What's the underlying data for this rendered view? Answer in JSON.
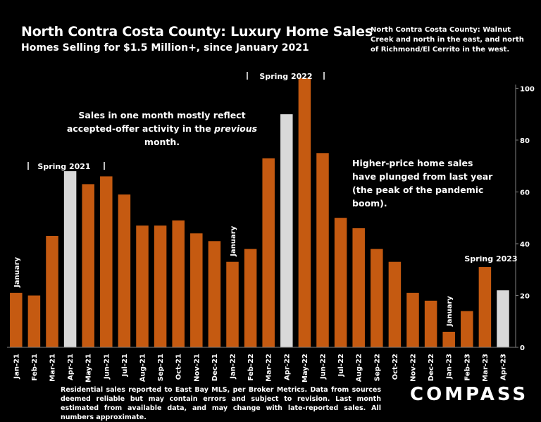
{
  "header": {
    "title": "North Contra Costa County: Luxury Home Sales",
    "subtitle": "Homes Selling for $1.5 Million+, since January 2021"
  },
  "region_note": "North Contra Costa County: Walnut Creek and north in the east, and north of Richmond/El Cerrito in the west.",
  "annotations": {
    "accepted_offer_pre": "Sales in one month mostly reflect accepted-offer activity in the ",
    "accepted_offer_em": "previous",
    "accepted_offer_post": " month.",
    "plunged": "Higher-price home sales have plunged from last year (the peak of the pandemic boom).",
    "spring_2021": "Spring 2021",
    "spring_2022": "Spring 2022",
    "spring_2023": "Spring 2023",
    "january": "January"
  },
  "footnote": "Residential sales reported to East Bay MLS, per Broker Metrics. Data from sources deemed reliable but may contain errors and subject to revision.  Last month estimated from available data, and may change with late-reported sales. All numbers approximate.",
  "logo": "COMPASS",
  "colors": {
    "bar": "#C55A11",
    "highlight": "#D9D9D9",
    "background": "#000000",
    "axis": "#808080"
  },
  "chart_data": {
    "type": "bar",
    "categories": [
      "Jan-21",
      "Feb-21",
      "Mar-21",
      "Apr-21",
      "May-21",
      "Jun-21",
      "Jul-21",
      "Aug-21",
      "Sep-21",
      "Oct-21",
      "Nov-21",
      "Dec-21",
      "Jan-22",
      "Feb-22",
      "Mar-22",
      "Apr-22",
      "May-22",
      "Jun-22",
      "Jul-22",
      "Aug-22",
      "Sep-22",
      "Oct-22",
      "Nov-22",
      "Dec-22",
      "Jan-23",
      "Feb-23",
      "Mar-23",
      "Apr-23"
    ],
    "values": [
      21,
      20,
      43,
      68,
      63,
      66,
      59,
      47,
      47,
      49,
      44,
      41,
      33,
      38,
      73,
      90,
      104,
      75,
      50,
      46,
      38,
      33,
      21,
      18,
      6,
      14,
      31,
      22
    ],
    "highlighted": [
      "Apr-21",
      "Apr-22",
      "Apr-23"
    ],
    "ylim": [
      0,
      105
    ],
    "yticks": [
      0,
      20,
      40,
      60,
      80,
      100
    ],
    "axis_side": "right",
    "grid": false
  }
}
